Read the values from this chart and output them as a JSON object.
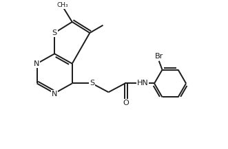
{
  "line_color": "#1a1a1a",
  "line_width": 1.4,
  "figsize": [
    3.31,
    2.17
  ],
  "dpi": 100,
  "xlim": [
    0,
    10
  ],
  "ylim": [
    0,
    6.5
  ]
}
